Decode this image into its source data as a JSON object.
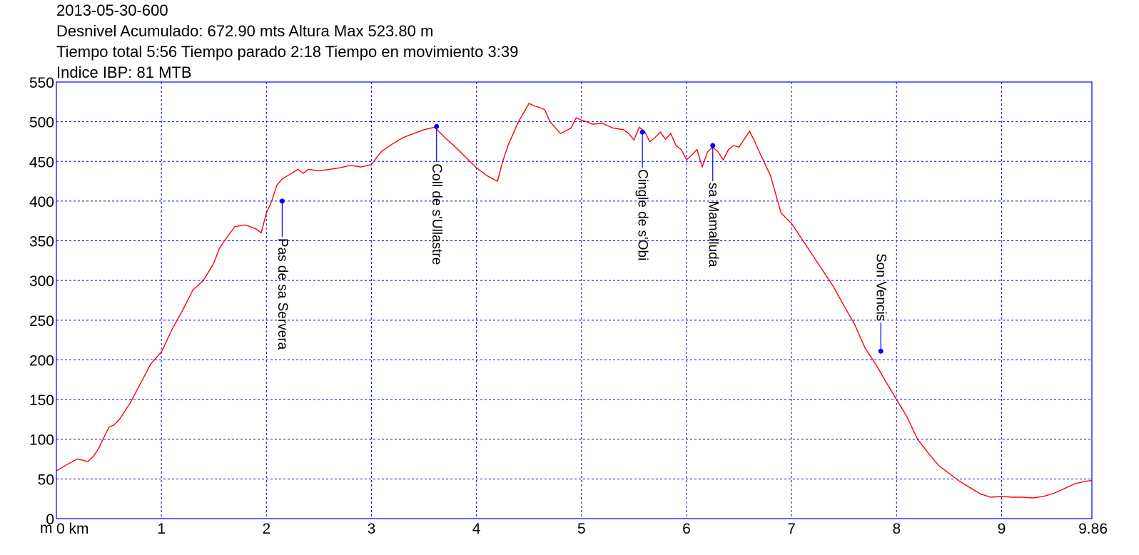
{
  "header": {
    "line1": "2013-05-30-600",
    "line2": "Desnivel Acumulado: 672.90 mts  Altura Max 523.80 m",
    "line3": "Tiempo total 5:56 Tiempo parado 2:18 Tiempo en movimiento 3:39",
    "line4": "Indice IBP: 81 MTB"
  },
  "chart_data": {
    "type": "line",
    "title": "",
    "xlabel": "",
    "ylabel": "",
    "y_unit_label": "m",
    "xlim": [
      0,
      9.86
    ],
    "ylim": [
      0,
      550
    ],
    "grid": true,
    "x_ticks": [
      {
        "value": 0,
        "label": "0 km"
      },
      {
        "value": 1,
        "label": "1"
      },
      {
        "value": 2,
        "label": "2"
      },
      {
        "value": 3,
        "label": "3"
      },
      {
        "value": 4,
        "label": "4"
      },
      {
        "value": 5,
        "label": "5"
      },
      {
        "value": 6,
        "label": "6"
      },
      {
        "value": 7,
        "label": "7"
      },
      {
        "value": 8,
        "label": "8"
      },
      {
        "value": 9,
        "label": "9"
      },
      {
        "value": 9.86,
        "label": "9.86"
      }
    ],
    "y_ticks": [
      0,
      50,
      100,
      150,
      200,
      250,
      300,
      350,
      400,
      450,
      500,
      550
    ],
    "colors": {
      "profile": "#ff0000",
      "grid": "#0000ff",
      "frame": "#0000ff",
      "waypoint": "#0000ff"
    },
    "series": [
      {
        "x": [
          0,
          0.1,
          0.2,
          0.3,
          0.35,
          0.4,
          0.5,
          0.55,
          0.6,
          0.7,
          0.8,
          0.9,
          1.0,
          1.1,
          1.2,
          1.3,
          1.4,
          1.5,
          1.55,
          1.6,
          1.7,
          1.8,
          1.9,
          1.95,
          2.0,
          2.05,
          2.1,
          2.15,
          2.2,
          2.3,
          2.35,
          2.4,
          2.5,
          2.6,
          2.7,
          2.8,
          2.9,
          3.0,
          3.05,
          3.1,
          3.2,
          3.3,
          3.4,
          3.5,
          3.6,
          3.7,
          3.8,
          3.9,
          4.0,
          4.1,
          4.2,
          4.25,
          4.3,
          4.4,
          4.5,
          4.55,
          4.6,
          4.65,
          4.7,
          4.8,
          4.9,
          4.95,
          5.0,
          5.05,
          5.1,
          5.2,
          5.3,
          5.4,
          5.45,
          5.5,
          5.55,
          5.6,
          5.65,
          5.7,
          5.75,
          5.8,
          5.85,
          5.9,
          5.95,
          6.0,
          6.05,
          6.1,
          6.15,
          6.2,
          6.25,
          6.3,
          6.35,
          6.4,
          6.45,
          6.5,
          6.6,
          6.65,
          6.7,
          6.8,
          6.9,
          7.0,
          7.1,
          7.2,
          7.3,
          7.4,
          7.5,
          7.6,
          7.7,
          7.8,
          7.9,
          8.0,
          8.1,
          8.2,
          8.3,
          8.4,
          8.5,
          8.6,
          8.7,
          8.8,
          8.9,
          9.0,
          9.1,
          9.2,
          9.3,
          9.4,
          9.5,
          9.6,
          9.7,
          9.8,
          9.86
        ],
        "y": [
          60,
          68,
          75,
          72,
          78,
          88,
          115,
          118,
          125,
          145,
          170,
          195,
          210,
          238,
          262,
          288,
          300,
          322,
          340,
          350,
          368,
          370,
          365,
          360,
          385,
          400,
          420,
          428,
          432,
          440,
          435,
          440,
          438,
          440,
          442,
          445,
          443,
          446,
          455,
          463,
          472,
          480,
          485,
          490,
          493,
          480,
          468,
          455,
          442,
          432,
          425,
          450,
          470,
          500,
          523,
          520,
          518,
          515,
          500,
          485,
          492,
          505,
          502,
          500,
          497,
          498,
          492,
          490,
          485,
          477,
          493,
          488,
          475,
          480,
          487,
          478,
          485,
          470,
          465,
          452,
          458,
          465,
          443,
          462,
          468,
          462,
          452,
          465,
          470,
          468,
          488,
          475,
          460,
          432,
          385,
          372,
          352,
          332,
          312,
          292,
          268,
          245,
          215,
          195,
          172,
          150,
          128,
          100,
          83,
          67,
          57,
          47,
          39,
          31,
          27,
          28,
          27,
          27,
          26,
          28,
          32,
          38,
          44,
          47,
          48
        ]
      }
    ],
    "waypoints": [
      {
        "name": "Pas de sa Servera",
        "x": 2.15,
        "y": 400
      },
      {
        "name": "Coll de s'Ullastre",
        "x": 3.62,
        "y": 494
      },
      {
        "name": "Cingle de s'Obi",
        "x": 5.58,
        "y": 487
      },
      {
        "name": "sa Mamalluda",
        "x": 6.25,
        "y": 470
      },
      {
        "name": "Son Vencis",
        "x": 7.85,
        "y": 211
      }
    ]
  }
}
